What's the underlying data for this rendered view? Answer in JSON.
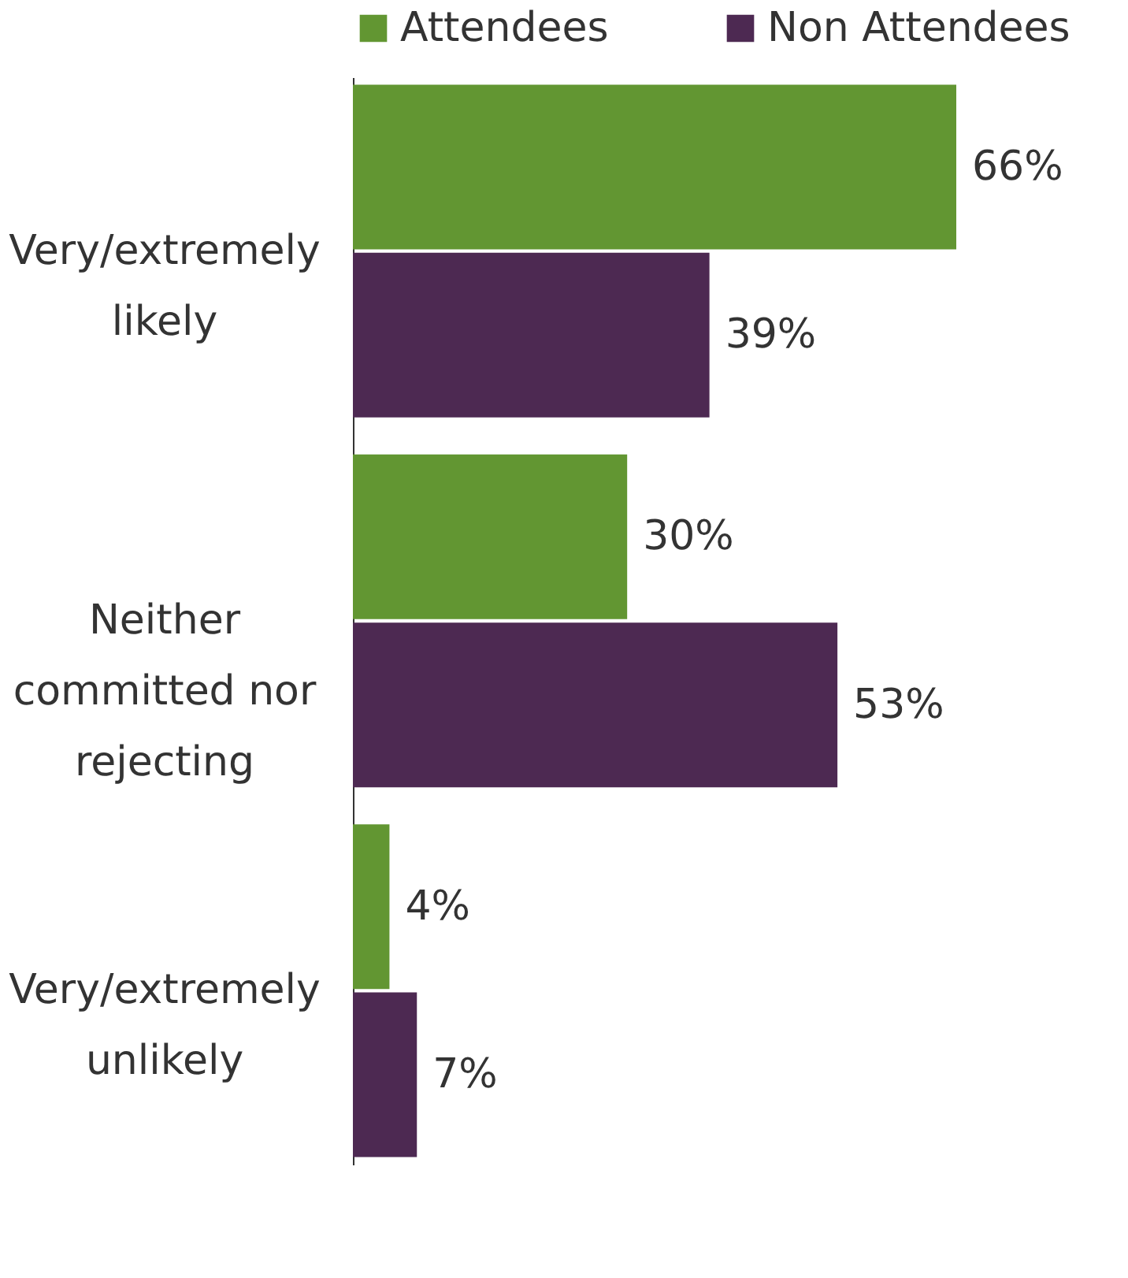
{
  "chart_data": {
    "type": "bar",
    "orientation": "horizontal",
    "categories": [
      "Very/extremely likely",
      "Neither committed nor rejecting",
      "Very/extremely unlikely"
    ],
    "series": [
      {
        "name": "Attendees",
        "color": "#629632",
        "values": [
          66,
          30,
          4
        ],
        "value_labels": [
          "66%",
          "30%",
          "4%"
        ]
      },
      {
        "name": "Non Attendees",
        "color": "#4d2952",
        "values": [
          39,
          53,
          7
        ],
        "value_labels": [
          "39%",
          "53%",
          "7%"
        ]
      }
    ],
    "tick_labels": "y",
    "legend": "top"
  }
}
